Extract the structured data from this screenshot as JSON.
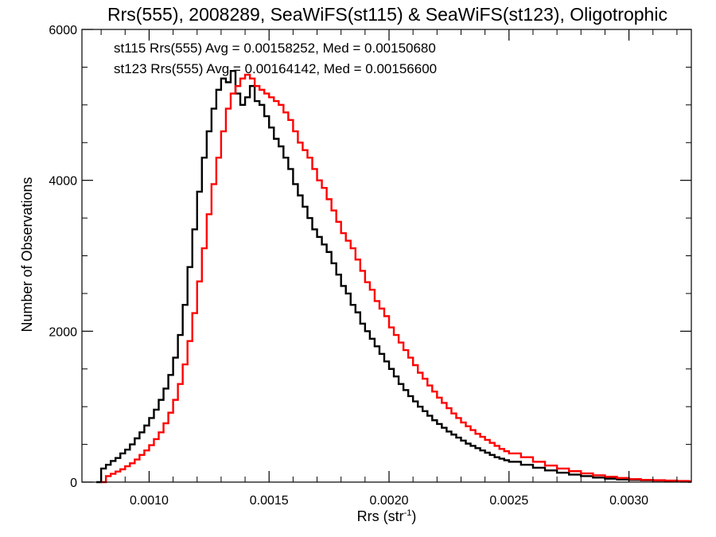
{
  "chart_data": {
    "type": "line",
    "title": "Rrs(555), 2008289, SeaWiFS(st115) & SeaWiFS(st123), Oligotrophic",
    "xlabel_base": "Rrs (str",
    "xlabel_sup": "-1",
    "xlabel_close": ")",
    "ylabel": "Number of Observations",
    "xlim": [
      0.00072,
      0.00326
    ],
    "ylim": [
      0,
      6000
    ],
    "x_ticks": [
      0.001,
      0.0015,
      0.002,
      0.0025,
      0.003
    ],
    "x_tick_labels": [
      "0.0010",
      "0.0015",
      "0.0020",
      "0.0025",
      "0.0030"
    ],
    "y_ticks": [
      0,
      2000,
      4000,
      6000
    ],
    "y_tick_labels": [
      "0",
      "2000",
      "4000",
      "6000"
    ],
    "grid": false,
    "legend_position": "top-left",
    "series": [
      {
        "name": "st115 Rrs(555) Avg = 0.00158252, Med = 0.00150680",
        "color": "#000000",
        "x": [
          0.00078,
          0.0008,
          0.00082,
          0.00084,
          0.00086,
          0.00088,
          0.0009,
          0.00092,
          0.00094,
          0.00096,
          0.00098,
          0.001,
          0.00102,
          0.00104,
          0.00106,
          0.00108,
          0.0011,
          0.00112,
          0.00114,
          0.00116,
          0.00118,
          0.0012,
          0.00122,
          0.00124,
          0.00126,
          0.00128,
          0.0013,
          0.00132,
          0.00134,
          0.00136,
          0.00138,
          0.0014,
          0.00142,
          0.00144,
          0.00146,
          0.00148,
          0.0015,
          0.00152,
          0.00154,
          0.00156,
          0.00158,
          0.0016,
          0.00162,
          0.00164,
          0.00166,
          0.00168,
          0.0017,
          0.00172,
          0.00174,
          0.00176,
          0.00178,
          0.0018,
          0.00182,
          0.00184,
          0.00186,
          0.00188,
          0.0019,
          0.00192,
          0.00194,
          0.00196,
          0.00198,
          0.002,
          0.00202,
          0.00204,
          0.00206,
          0.00208,
          0.0021,
          0.00212,
          0.00214,
          0.00216,
          0.00218,
          0.0022,
          0.00222,
          0.00224,
          0.00226,
          0.00228,
          0.0023,
          0.00232,
          0.00234,
          0.00236,
          0.00238,
          0.0024,
          0.00242,
          0.00244,
          0.00246,
          0.00248,
          0.0025,
          0.00255,
          0.0026,
          0.00265,
          0.0027,
          0.00275,
          0.0028,
          0.00285,
          0.0029,
          0.00295,
          0.003,
          0.00305,
          0.0031,
          0.00315,
          0.0032,
          0.00325
        ],
        "y": [
          0,
          180,
          230,
          280,
          320,
          380,
          430,
          500,
          580,
          660,
          750,
          850,
          960,
          1090,
          1240,
          1420,
          1650,
          1950,
          2350,
          2850,
          3350,
          3850,
          4300,
          4650,
          4950,
          5200,
          5350,
          5300,
          5450,
          5150,
          5000,
          5100,
          5250,
          5050,
          5000,
          4850,
          4700,
          4550,
          4450,
          4300,
          4150,
          3950,
          3800,
          3650,
          3500,
          3350,
          3250,
          3150,
          3050,
          2900,
          2750,
          2600,
          2500,
          2350,
          2250,
          2100,
          2000,
          1900,
          1800,
          1700,
          1600,
          1500,
          1400,
          1300,
          1220,
          1140,
          1070,
          1000,
          940,
          880,
          820,
          770,
          720,
          670,
          630,
          590,
          550,
          510,
          480,
          450,
          420,
          390,
          360,
          330,
          310,
          290,
          270,
          230,
          190,
          155,
          125,
          100,
          80,
          60,
          45,
          35,
          30,
          25,
          20,
          15,
          10,
          5
        ]
      },
      {
        "name": "st123 Rrs(555) Avg = 0.00164142, Med = 0.00156600",
        "color": "#ff0000",
        "x": [
          0.0008,
          0.00082,
          0.00084,
          0.00086,
          0.00088,
          0.0009,
          0.00092,
          0.00094,
          0.00096,
          0.00098,
          0.001,
          0.00102,
          0.00104,
          0.00106,
          0.00108,
          0.0011,
          0.00112,
          0.00114,
          0.00116,
          0.00118,
          0.0012,
          0.00122,
          0.00124,
          0.00126,
          0.00128,
          0.0013,
          0.00132,
          0.00134,
          0.00136,
          0.00138,
          0.0014,
          0.00142,
          0.00144,
          0.00146,
          0.00148,
          0.0015,
          0.00152,
          0.00154,
          0.00156,
          0.00158,
          0.0016,
          0.00162,
          0.00164,
          0.00166,
          0.00168,
          0.0017,
          0.00172,
          0.00174,
          0.00176,
          0.00178,
          0.0018,
          0.00182,
          0.00184,
          0.00186,
          0.00188,
          0.0019,
          0.00192,
          0.00194,
          0.00196,
          0.00198,
          0.002,
          0.00202,
          0.00204,
          0.00206,
          0.00208,
          0.0021,
          0.00212,
          0.00214,
          0.00216,
          0.00218,
          0.0022,
          0.00222,
          0.00224,
          0.00226,
          0.00228,
          0.0023,
          0.00232,
          0.00234,
          0.00236,
          0.00238,
          0.0024,
          0.00242,
          0.00244,
          0.00246,
          0.00248,
          0.0025,
          0.00255,
          0.0026,
          0.00265,
          0.0027,
          0.00275,
          0.0028,
          0.00285,
          0.0029,
          0.00295,
          0.003,
          0.00305,
          0.0031,
          0.00315,
          0.0032,
          0.00325
        ],
        "y": [
          0,
          80,
          110,
          140,
          170,
          210,
          250,
          300,
          360,
          420,
          490,
          570,
          660,
          780,
          920,
          1090,
          1300,
          1560,
          1870,
          2240,
          2660,
          3100,
          3550,
          3950,
          4300,
          4650,
          4950,
          5150,
          5250,
          5350,
          5400,
          5350,
          5250,
          5200,
          5150,
          5100,
          5050,
          5000,
          4900,
          4800,
          4650,
          4500,
          4400,
          4300,
          4150,
          4000,
          3900,
          3750,
          3600,
          3450,
          3300,
          3200,
          3100,
          2950,
          2800,
          2650,
          2550,
          2400,
          2300,
          2200,
          2050,
          1950,
          1850,
          1750,
          1650,
          1550,
          1450,
          1370,
          1280,
          1200,
          1120,
          1050,
          980,
          910,
          850,
          790,
          740,
          690,
          640,
          600,
          560,
          520,
          480,
          440,
          410,
          380,
          330,
          270,
          220,
          180,
          145,
          115,
          90,
          70,
          55,
          40,
          30,
          25,
          20,
          15,
          10
        ]
      }
    ]
  }
}
